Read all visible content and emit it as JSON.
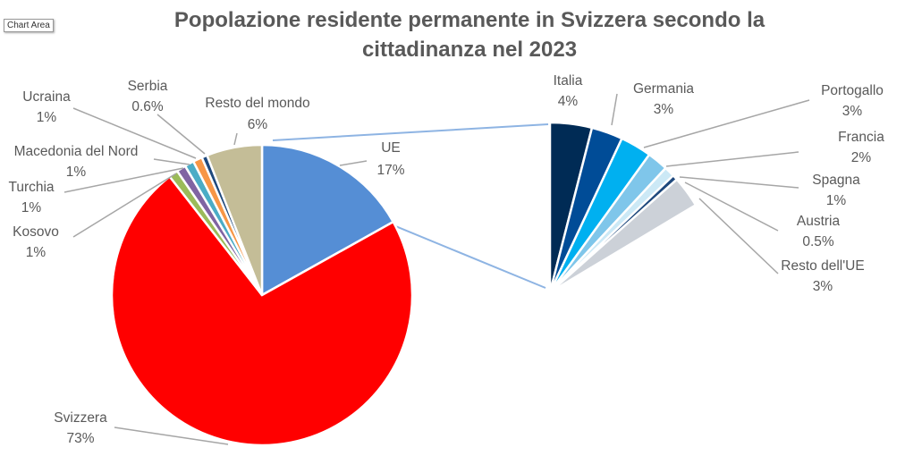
{
  "tooltip": "Chart Area",
  "chart_data": {
    "type": "pie-of-pie",
    "title": "Popolazione residente permanente in Svizzera secondo la cittadinanza nel 2023",
    "primary": [
      {
        "name": "UE",
        "value": 17,
        "label": "17%",
        "color": "#558ed5"
      },
      {
        "name": "Svizzera",
        "value": 73,
        "label": "73%",
        "color": "#ff0000"
      },
      {
        "name": "Kosovo",
        "value": 1,
        "label": "1%",
        "color": "#9bbb59"
      },
      {
        "name": "Turchia",
        "value": 1,
        "label": "1%",
        "color": "#8064a2"
      },
      {
        "name": "Macedonia del Nord",
        "value": 1,
        "label": "1%",
        "color": "#4bacc6"
      },
      {
        "name": "Ucraina",
        "value": 1,
        "label": "1%",
        "color": "#f79646"
      },
      {
        "name": "Serbia",
        "value": 0.6,
        "label": "0.6%",
        "color": "#1f497d"
      },
      {
        "name": "Resto del mondo",
        "value": 6,
        "label": "6%",
        "color": "#c4bd97"
      }
    ],
    "secondary": [
      {
        "name": "Italia",
        "value": 4,
        "label": "4%",
        "color": "#002b55"
      },
      {
        "name": "Germania",
        "value": 3,
        "label": "3%",
        "color": "#004c97"
      },
      {
        "name": "Portogallo",
        "value": 3,
        "label": "3%",
        "color": "#00b0f0"
      },
      {
        "name": "Francia",
        "value": 2,
        "label": "2%",
        "color": "#7fc6ea"
      },
      {
        "name": "Spagna",
        "value": 1,
        "label": "1%",
        "color": "#cce9f6"
      },
      {
        "name": "Austria",
        "value": 0.5,
        "label": "0.5%",
        "color": "#1f497d"
      },
      {
        "name": "Resto dell'UE",
        "value": 3,
        "label": "3%",
        "color": "#ccd1d8"
      }
    ],
    "connector_color": "#8eb4e3",
    "legend": "none"
  }
}
